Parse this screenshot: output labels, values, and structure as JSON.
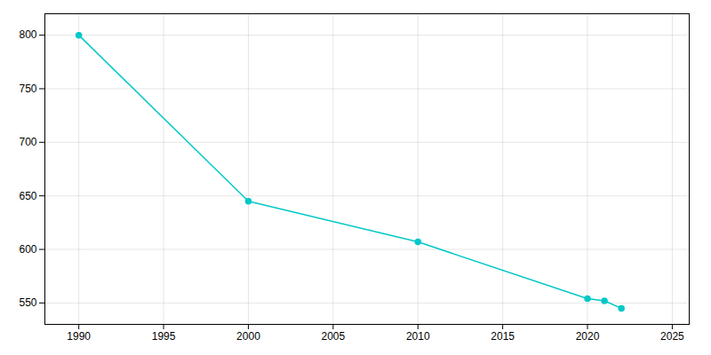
{
  "chart_data": {
    "type": "line",
    "x": [
      1990,
      2000,
      2010,
      2020,
      2021,
      2022
    ],
    "values": [
      800,
      645,
      607,
      554,
      552,
      545
    ],
    "color": "#00C8C8",
    "marker": "circle",
    "xlim": [
      1988,
      2026
    ],
    "ylim": [
      530,
      820
    ],
    "xticks": [
      1990,
      1995,
      2000,
      2005,
      2010,
      2015,
      2020,
      2025
    ],
    "yticks": [
      550,
      600,
      650,
      700,
      750,
      800
    ],
    "grid": true
  }
}
